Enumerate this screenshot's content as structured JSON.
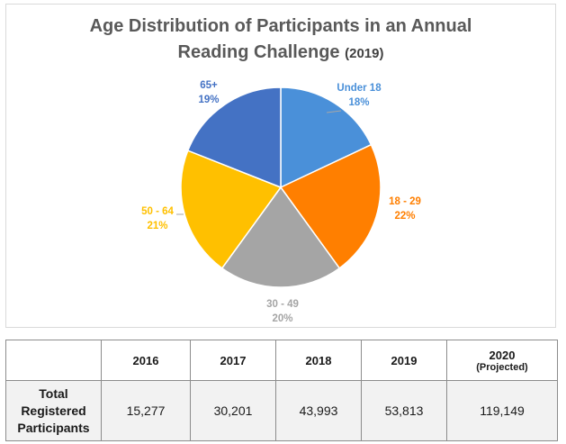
{
  "chart_data": {
    "type": "pie",
    "title_line1": "Age Distribution of Participants in an Annual",
    "title_line2": "Reading Challenge",
    "title_year": "(2019)",
    "slices": [
      {
        "label": "Under 18",
        "pct_label": "18%",
        "value": 18,
        "color": "#4A90D9"
      },
      {
        "label": "18 - 29",
        "pct_label": "22%",
        "value": 22,
        "color": "#FF7F00"
      },
      {
        "label": "30 - 49",
        "pct_label": "20%",
        "value": 20,
        "color": "#A5A5A5"
      },
      {
        "label": "50 - 64",
        "pct_label": "21%",
        "value": 21,
        "color": "#FFC000"
      },
      {
        "label": "65+",
        "pct_label": "19%",
        "value": 19,
        "color": "#4472C4"
      }
    ]
  },
  "table": {
    "row_header": [
      "Total",
      "Registered",
      "Participants"
    ],
    "columns": [
      {
        "year": "2016",
        "note": "",
        "value": "15,277"
      },
      {
        "year": "2017",
        "note": "",
        "value": "30,201"
      },
      {
        "year": "2018",
        "note": "",
        "value": "43,993"
      },
      {
        "year": "2019",
        "note": "",
        "value": "53,813"
      },
      {
        "year": "2020",
        "note": "(Projected)",
        "value": "119,149"
      }
    ]
  }
}
